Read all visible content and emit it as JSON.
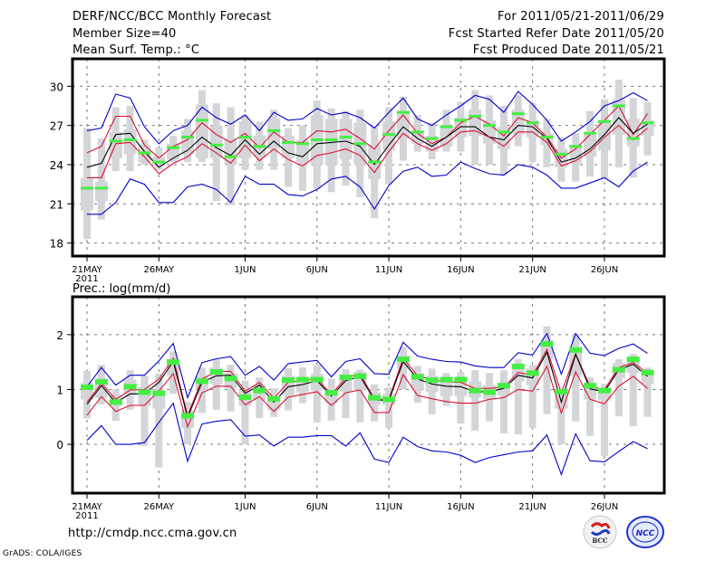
{
  "header": {
    "title": "DERF/NCC/BCC Monthly Forecast",
    "member_size": "Member Size=40",
    "variable_top": "Mean Surf. Temp.: °C",
    "period": "For 2011/05/21-2011/06/29",
    "started_refer": "Fcst Started Refer Date 2011/05/20",
    "produced": "Fcst Produced Date 2011/05/21"
  },
  "footer": {
    "url": "http://cmdp.ncc.cma.gov.cn",
    "grads": "GrADS: COLA/IGES",
    "logos": [
      "BCC",
      "NCC"
    ]
  },
  "colors": {
    "max_min": "#0000cc",
    "spread": "#dd1133",
    "mean": "#000000",
    "box": "#d3d5d8",
    "median": "#44ee44",
    "grid": "#777777"
  },
  "chart_data": [
    {
      "type": "line",
      "title": "Mean Surf. Temp.: °C",
      "xlabel": "",
      "ylabel": "",
      "ylim": [
        17.0,
        32.1
      ],
      "yticks": [
        18,
        21,
        24,
        27,
        30
      ],
      "ytick_labels": [
        "18",
        "21",
        "24",
        "27",
        "30"
      ],
      "xtick_days": [
        0,
        5,
        11,
        16,
        21,
        26,
        31,
        36
      ],
      "xtick_labels": [
        "21MAY",
        "26MAY",
        "1JUN",
        "6JUN",
        "11JUN",
        "16JUN",
        "21JUN",
        "26JUN"
      ],
      "xtick_sublabel": "2011",
      "n_days": 40,
      "start_date": "2011-05-21",
      "grid": true,
      "legend": "none",
      "series": [
        {
          "name": "max",
          "color_key": "max_min",
          "values": [
            26.6,
            26.8,
            29.4,
            29.1,
            26.9,
            25.6,
            26.6,
            27.0,
            28.4,
            27.6,
            27.1,
            27.8,
            26.6,
            28.0,
            27.4,
            27.5,
            28.3,
            27.8,
            28.0,
            27.6,
            26.8,
            28.0,
            29.1,
            27.5,
            27.0,
            27.8,
            28.5,
            29.3,
            29.0,
            28.0,
            29.6,
            28.6,
            27.4,
            25.8,
            26.5,
            27.3,
            28.5,
            28.9,
            29.5,
            28.9
          ]
        },
        {
          "name": "spread_upper",
          "color_key": "spread",
          "values": [
            24.9,
            25.4,
            27.7,
            27.7,
            25.5,
            24.5,
            25.4,
            25.9,
            27.2,
            26.3,
            25.7,
            26.4,
            25.3,
            26.5,
            25.7,
            25.7,
            26.6,
            26.5,
            26.7,
            26.0,
            25.2,
            26.6,
            27.8,
            26.4,
            25.6,
            26.1,
            27.2,
            27.7,
            27.1,
            26.2,
            27.6,
            27.2,
            26.1,
            24.5,
            25.2,
            26.3,
            27.4,
            28.5,
            26.3,
            27.9
          ]
        },
        {
          "name": "ensemble_mean",
          "color_key": "mean",
          "values": [
            23.8,
            24.1,
            26.3,
            26.4,
            25.0,
            23.8,
            24.5,
            25.1,
            26.1,
            25.3,
            24.7,
            25.9,
            24.8,
            25.8,
            24.9,
            24.6,
            25.6,
            25.7,
            25.8,
            25.4,
            24.0,
            25.5,
            26.9,
            26.0,
            25.4,
            26.1,
            26.9,
            26.9,
            26.1,
            25.9,
            27.0,
            26.9,
            26.0,
            24.2,
            24.5,
            25.2,
            26.3,
            27.6,
            26.4,
            27.1
          ]
        },
        {
          "name": "spread_lower",
          "color_key": "spread",
          "values": [
            23.0,
            23.0,
            25.6,
            25.7,
            24.6,
            23.3,
            24.1,
            24.6,
            25.6,
            24.9,
            24.1,
            25.5,
            24.3,
            25.2,
            24.4,
            23.9,
            24.7,
            24.9,
            25.2,
            24.7,
            23.4,
            25.0,
            26.4,
            25.6,
            25.1,
            25.6,
            26.5,
            26.6,
            26.1,
            25.4,
            26.5,
            26.5,
            25.7,
            23.9,
            24.3,
            25.0,
            26.1,
            27.0,
            25.9,
            26.8
          ]
        },
        {
          "name": "min",
          "color_key": "max_min",
          "values": [
            20.2,
            20.2,
            21.1,
            22.9,
            22.5,
            21.1,
            21.1,
            22.3,
            22.5,
            22.1,
            21.1,
            23.1,
            22.5,
            22.5,
            21.7,
            21.6,
            22.1,
            22.9,
            23.1,
            22.3,
            20.6,
            22.4,
            23.5,
            23.8,
            23.1,
            23.2,
            24.2,
            23.7,
            23.3,
            23.2,
            24.0,
            23.8,
            23.2,
            22.2,
            22.2,
            22.6,
            23.0,
            22.3,
            23.5,
            24.2
          ]
        }
      ],
      "boxes": {
        "color_key": "box",
        "outer_low": [
          18.3,
          19.8,
          23.5,
          23.5,
          24.0,
          23.6,
          24.2,
          24.2,
          24.2,
          21.2,
          20.9,
          23.6,
          23.6,
          23.6,
          22.3,
          22.0,
          22.1,
          21.9,
          22.4,
          21.5,
          19.9,
          22.5,
          24.3,
          25.0,
          24.4,
          25.0,
          25.0,
          24.0,
          24.0,
          23.2,
          25.4,
          24.2,
          23.8,
          22.7,
          22.7,
          23.1,
          22.9,
          23.8,
          23.0,
          24.7
        ],
        "outer_high": [
          26.8,
          26.0,
          28.4,
          28.5,
          25.9,
          25.3,
          26.2,
          27.5,
          29.7,
          28.7,
          28.4,
          27.8,
          27.3,
          28.2,
          26.8,
          27.0,
          28.9,
          28.3,
          28.1,
          28.2,
          26.9,
          28.4,
          29.2,
          27.8,
          27.2,
          28.2,
          28.8,
          29.7,
          29.3,
          28.5,
          29.3,
          28.7,
          27.5,
          26.1,
          26.4,
          28.1,
          29.0,
          30.5,
          29.1,
          28.8
        ],
        "inner_low": [
          20.5,
          21.2,
          24.5,
          24.8,
          24.2,
          23.9,
          24.4,
          24.8,
          24.5,
          24.5,
          24.0,
          24.5,
          24.6,
          25.2,
          24.5,
          24.2,
          24.0,
          24.0,
          24.4,
          24.0,
          22.9,
          25.1,
          26.0,
          25.6,
          25.0,
          25.4,
          26.1,
          26.2,
          25.6,
          25.2,
          26.3,
          26.1,
          25.5,
          23.8,
          24.1,
          24.6,
          25.1,
          26.3,
          25.4,
          26.2
        ],
        "inner_high": [
          23.0,
          22.7,
          26.5,
          26.7,
          25.5,
          24.6,
          25.6,
          26.6,
          28.6,
          27.0,
          26.0,
          27.3,
          26.2,
          27.5,
          26.2,
          25.9,
          27.8,
          27.5,
          27.5,
          27.2,
          25.5,
          27.3,
          28.1,
          26.6,
          26.2,
          27.0,
          27.6,
          28.2,
          27.4,
          26.9,
          28.2,
          27.4,
          26.4,
          25.2,
          25.3,
          26.3,
          27.4,
          29.0,
          27.5,
          27.4
        ],
        "median": [
          22.2,
          22.2,
          25.8,
          25.9,
          24.9,
          24.2,
          25.3,
          26.1,
          27.4,
          25.5,
          24.6,
          26.1,
          25.4,
          26.6,
          25.7,
          25.6,
          25.9,
          25.9,
          26.1,
          25.6,
          24.2,
          26.3,
          28.0,
          26.5,
          26.0,
          26.9,
          27.4,
          27.7,
          27.0,
          26.5,
          27.9,
          27.2,
          26.1,
          24.8,
          25.4,
          26.4,
          27.3,
          28.5,
          26.0,
          27.2
        ]
      }
    },
    {
      "type": "line",
      "title": "Prec.: log(mm/d)",
      "xlabel": "",
      "ylabel": "",
      "ylim": [
        -0.89,
        2.69
      ],
      "yticks": [
        0,
        1,
        2
      ],
      "ytick_labels": [
        "0",
        "1",
        "2"
      ],
      "xtick_days": [
        0,
        5,
        11,
        16,
        21,
        26,
        31,
        36
      ],
      "xtick_labels": [
        "21MAY",
        "26MAY",
        "1JUN",
        "6JUN",
        "11JUN",
        "16JUN",
        "21JUN",
        "26JUN"
      ],
      "xtick_sublabel": "2011",
      "n_days": 40,
      "start_date": "2011-05-21",
      "grid": true,
      "legend": "none",
      "series": [
        {
          "name": "max",
          "color_key": "max_min",
          "values": [
            1.05,
            1.4,
            1.08,
            1.26,
            1.26,
            1.52,
            1.84,
            0.85,
            1.49,
            1.56,
            1.6,
            1.26,
            1.42,
            1.17,
            1.47,
            1.5,
            1.53,
            1.23,
            1.51,
            1.56,
            1.29,
            1.28,
            1.86,
            1.61,
            1.55,
            1.51,
            1.5,
            1.43,
            1.4,
            1.4,
            1.67,
            1.63,
            2.02,
            1.28,
            2.02,
            1.66,
            1.62,
            1.75,
            1.83,
            1.66
          ]
        },
        {
          "name": "spread_upper",
          "color_key": "spread",
          "values": [
            0.77,
            1.11,
            0.82,
            0.99,
            1.0,
            1.19,
            1.57,
            0.52,
            1.19,
            1.33,
            1.33,
            0.97,
            1.13,
            0.84,
            1.13,
            1.16,
            1.2,
            0.91,
            1.21,
            1.29,
            0.82,
            0.82,
            1.57,
            1.25,
            1.18,
            1.14,
            1.13,
            1.02,
            1.02,
            1.04,
            1.31,
            1.26,
            1.73,
            0.94,
            1.65,
            1.05,
            1.0,
            1.4,
            1.49,
            1.3
          ]
        },
        {
          "name": "ensemble_mean",
          "color_key": "mean",
          "values": [
            0.73,
            1.07,
            0.76,
            0.92,
            0.92,
            1.13,
            1.51,
            0.49,
            1.13,
            1.25,
            1.26,
            0.93,
            1.08,
            0.77,
            1.05,
            1.09,
            1.16,
            0.88,
            1.16,
            1.24,
            0.81,
            0.8,
            1.51,
            1.19,
            1.1,
            1.06,
            1.05,
            0.96,
            0.96,
            1.02,
            1.26,
            1.21,
            1.68,
            0.77,
            1.64,
            1.01,
            0.96,
            1.36,
            1.46,
            1.24
          ]
        },
        {
          "name": "spread_lower",
          "color_key": "spread",
          "values": [
            0.53,
            0.87,
            0.6,
            0.71,
            0.71,
            0.97,
            1.29,
            0.32,
            0.94,
            1.06,
            1.06,
            0.72,
            0.87,
            0.6,
            0.86,
            0.91,
            0.96,
            0.71,
            0.94,
            0.99,
            0.58,
            0.58,
            1.27,
            0.89,
            0.83,
            0.78,
            0.75,
            0.75,
            0.82,
            0.85,
            1.0,
            0.97,
            1.42,
            0.57,
            1.32,
            0.82,
            0.74,
            1.06,
            1.24,
            1.02
          ]
        },
        {
          "name": "min",
          "color_key": "max_min",
          "values": [
            0.07,
            0.34,
            0.0,
            0.0,
            0.03,
            0.4,
            0.75,
            -0.31,
            0.37,
            0.42,
            0.45,
            0.15,
            0.17,
            -0.03,
            0.13,
            0.13,
            0.16,
            0.16,
            -0.03,
            0.21,
            -0.27,
            -0.33,
            0.13,
            -0.04,
            -0.12,
            -0.14,
            -0.2,
            -0.33,
            -0.24,
            -0.19,
            -0.14,
            -0.12,
            0.17,
            -0.55,
            0.19,
            -0.3,
            -0.32,
            -0.13,
            0.05,
            -0.08
          ]
        }
      ],
      "boxes": {
        "color_key": "box",
        "outer_low": [
          0.47,
          0.73,
          0.43,
          0.63,
          -0.03,
          -0.42,
          0.92,
          0.0,
          0.57,
          0.63,
          0.6,
          0.0,
          0.48,
          0.5,
          0.62,
          0.75,
          0.4,
          0.43,
          0.48,
          0.4,
          0.42,
          0.3,
          1.0,
          0.76,
          0.55,
          0.7,
          0.38,
          0.25,
          0.42,
          0.2,
          0.18,
          0.3,
          0.55,
          0.0,
          0.42,
          0.15,
          -0.22,
          0.51,
          0.33,
          0.5
        ],
        "outer_high": [
          1.34,
          1.45,
          1.0,
          1.35,
          1.25,
          1.29,
          1.69,
          0.77,
          1.4,
          1.55,
          1.45,
          1.16,
          1.22,
          1.02,
          1.39,
          1.4,
          1.45,
          1.2,
          1.37,
          1.36,
          1.09,
          1.04,
          1.78,
          1.43,
          1.38,
          1.3,
          1.32,
          1.35,
          1.3,
          1.35,
          1.55,
          1.45,
          2.15,
          0.8,
          2.0,
          1.22,
          1.1,
          1.55,
          1.65,
          1.4
        ],
        "inner_low": [
          0.82,
          0.85,
          0.7,
          0.9,
          0.7,
          0.65,
          1.25,
          0.3,
          1.0,
          1.1,
          1.02,
          0.7,
          0.8,
          0.62,
          0.9,
          0.95,
          0.98,
          0.75,
          0.97,
          1.0,
          0.72,
          0.72,
          1.38,
          1.0,
          0.95,
          0.88,
          0.88,
          0.85,
          0.82,
          0.9,
          1.15,
          1.08,
          1.55,
          0.65,
          1.25,
          0.82,
          0.8,
          1.2,
          1.3,
          1.1
        ],
        "inner_high": [
          1.12,
          1.2,
          0.9,
          1.18,
          1.05,
          1.0,
          1.55,
          0.62,
          1.25,
          1.4,
          1.3,
          0.98,
          1.08,
          0.85,
          1.25,
          1.2,
          1.28,
          1.0,
          1.28,
          1.32,
          0.95,
          0.92,
          1.62,
          1.3,
          1.25,
          1.2,
          1.18,
          1.15,
          1.08,
          1.12,
          1.45,
          1.38,
          1.9,
          1.0,
          1.78,
          1.12,
          1.0,
          1.48,
          1.55,
          1.35
        ],
        "median": [
          1.04,
          1.14,
          0.77,
          1.05,
          0.95,
          0.93,
          1.5,
          0.52,
          1.15,
          1.32,
          1.2,
          0.86,
          0.98,
          0.83,
          1.17,
          1.18,
          1.18,
          0.94,
          1.22,
          1.24,
          0.85,
          0.82,
          1.55,
          1.23,
          1.17,
          1.18,
          1.18,
          0.98,
          0.95,
          1.07,
          1.42,
          1.3,
          1.83,
          0.96,
          1.72,
          1.07,
          0.98,
          1.36,
          1.55,
          1.31
        ]
      }
    }
  ]
}
